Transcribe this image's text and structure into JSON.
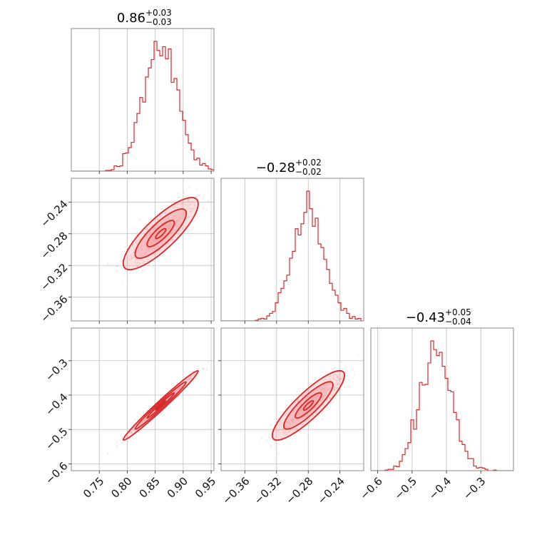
{
  "chart_data": {
    "type": "corner",
    "color": "#d62728",
    "fill_color": "#f4a6a8",
    "grid": true,
    "parameters": [
      {
        "title": "0.86",
        "err_plus": "+0.03",
        "err_minus": "−0.03",
        "range": [
          0.7,
          0.955
        ],
        "ticks": [
          "0.75",
          "0.80",
          "0.85",
          "0.90",
          "0.95"
        ],
        "tick_values": [
          0.75,
          0.8,
          0.85,
          0.9,
          0.95
        ],
        "median": 0.86,
        "sigma": 0.03
      },
      {
        "title": "−0.28",
        "err_plus": "+0.02",
        "err_minus": "−0.02",
        "range": [
          -0.39,
          -0.21
        ],
        "ticks": [
          "−0.36",
          "−0.32",
          "−0.28",
          "−0.24"
        ],
        "tick_values": [
          -0.36,
          -0.32,
          -0.28,
          -0.24
        ],
        "median": -0.28,
        "sigma": 0.02
      },
      {
        "title": "−0.43",
        "err_plus": "+0.05",
        "err_minus": "−0.04",
        "range": [
          -0.62,
          -0.205
        ],
        "ticks": [
          "−0.6",
          "−0.5",
          "−0.4",
          "−0.3"
        ],
        "tick_values": [
          -0.6,
          -0.5,
          -0.4,
          -0.3
        ],
        "median": -0.43,
        "sigma": 0.045
      }
    ]
  }
}
